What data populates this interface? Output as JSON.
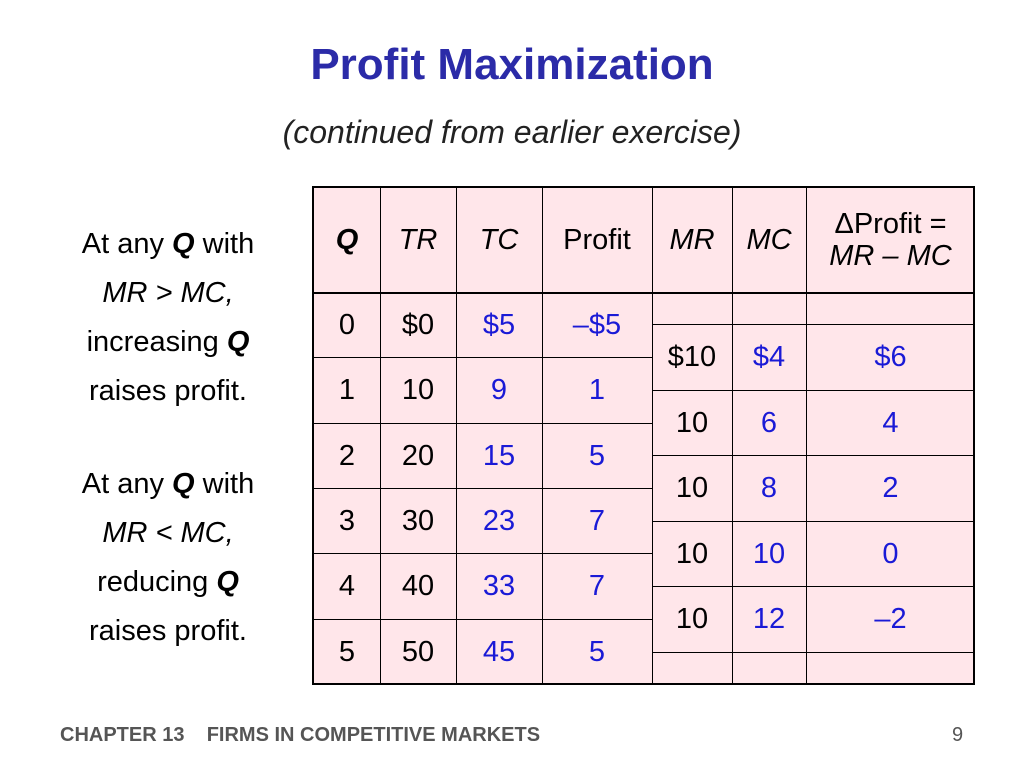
{
  "title": "Profit Maximization",
  "subtitle": "(continued from earlier exercise)",
  "side_text": {
    "block1": {
      "l1_pre": "At any ",
      "l1_q": "Q",
      "l1_post": " with",
      "l2": "MR > MC,",
      "l3_pre": "increasing ",
      "l3_q": "Q",
      "l4": "raises profit."
    },
    "block2": {
      "l1_pre": "At any ",
      "l1_q": "Q",
      "l1_post": " with",
      "l2": "MR < MC,",
      "l3_pre": "reducing ",
      "l3_q": "Q",
      "l4": "raises profit."
    }
  },
  "table": {
    "headers": {
      "q": "Q",
      "tr": "TR",
      "tc": "TC",
      "profit": "Profit",
      "mr": "MR",
      "mc": "MC",
      "dprofit_line1": "ΔProfit =",
      "dprofit_line2": "MR – MC"
    },
    "rows": [
      {
        "q": "0",
        "tr": "$0",
        "tc": "$5",
        "profit": "–$5"
      },
      {
        "q": "1",
        "tr": "10",
        "tc": "9",
        "profit": "1"
      },
      {
        "q": "2",
        "tr": "20",
        "tc": "15",
        "profit": "5"
      },
      {
        "q": "3",
        "tr": "30",
        "tc": "23",
        "profit": "7"
      },
      {
        "q": "4",
        "tr": "40",
        "tc": "33",
        "profit": "7"
      },
      {
        "q": "5",
        "tr": "50",
        "tc": "45",
        "profit": "5"
      }
    ],
    "marginal_rows": [
      {
        "mr": "$10",
        "mc": "$4",
        "dprofit": "$6"
      },
      {
        "mr": "10",
        "mc": "6",
        "dprofit": "4"
      },
      {
        "mr": "10",
        "mc": "8",
        "dprofit": "2"
      },
      {
        "mr": "10",
        "mc": "10",
        "dprofit": "0"
      },
      {
        "mr": "10",
        "mc": "12",
        "dprofit": "–2"
      }
    ]
  },
  "footer": {
    "chapter": "CHAPTER 13    FIRMS IN COMPETITIVE MARKETS",
    "page": "9"
  },
  "colors": {
    "title": "#2b2ba8",
    "table_bg": "#ffe6ea",
    "computed_values": "#1a1ad6"
  }
}
